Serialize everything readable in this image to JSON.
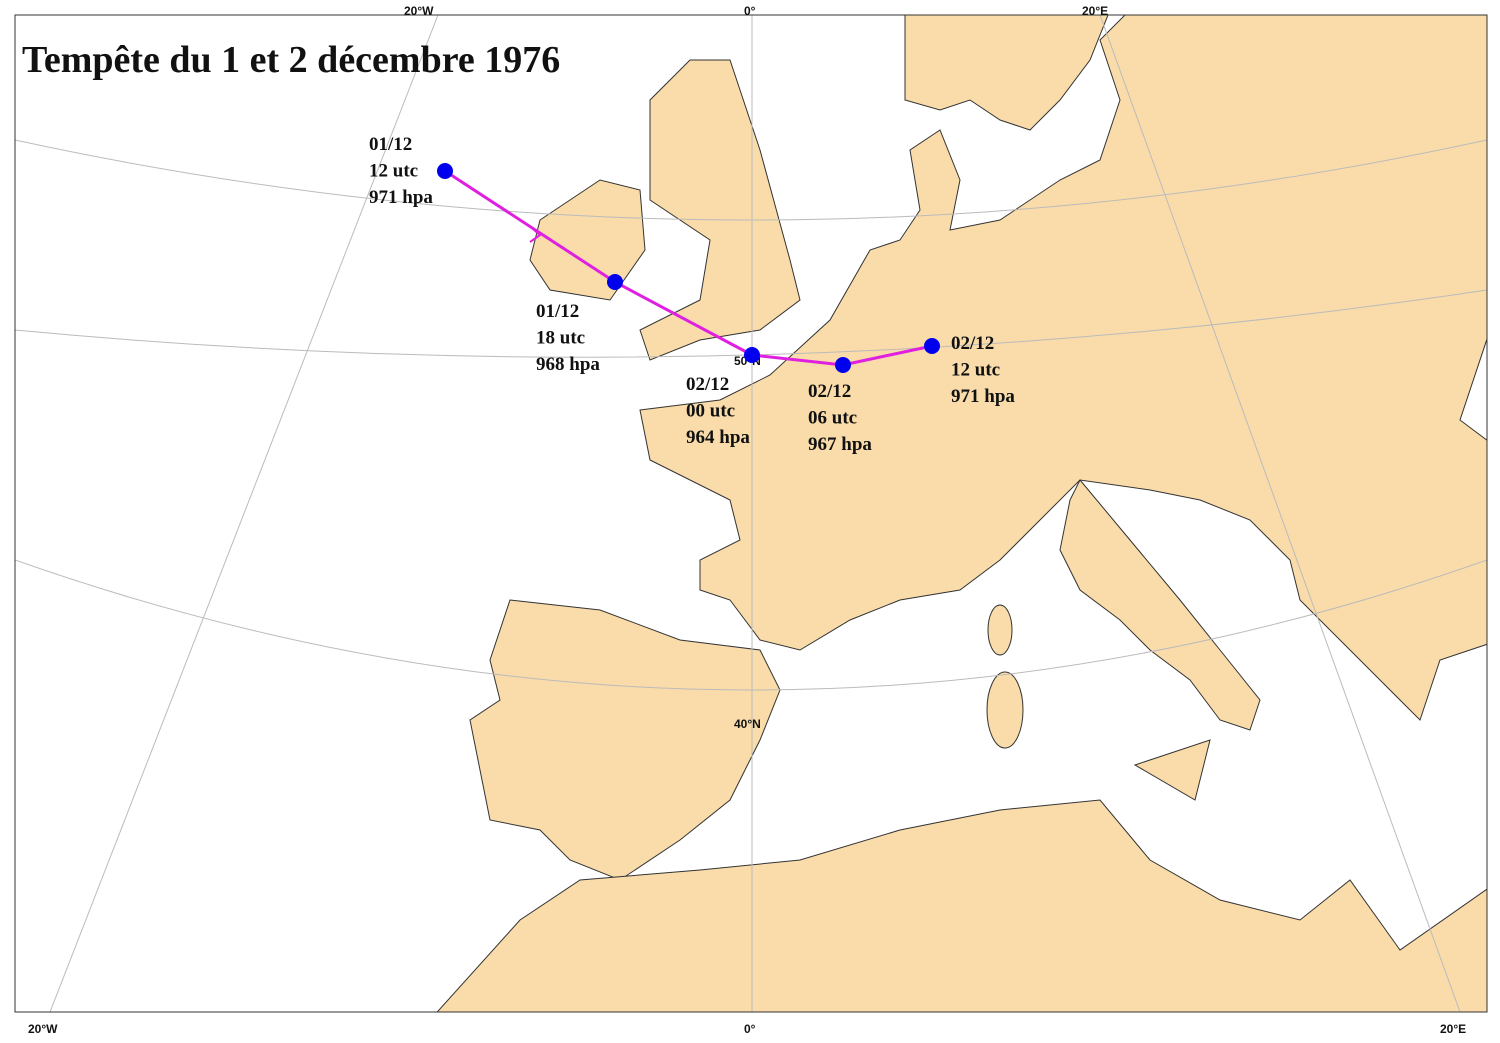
{
  "title": "Tempête du 1 et 2 décembre 1976",
  "graticule_labels": {
    "top": [
      "20°W",
      "0°",
      "20°E"
    ],
    "bottom": [
      "20°W",
      "0°",
      "20°E"
    ],
    "parallels": [
      "50°N",
      "40°N"
    ]
  },
  "track": [
    {
      "date": "01/12",
      "time": "12 utc",
      "pressure": "971 hpa"
    },
    {
      "date": "01/12",
      "time": "18 utc",
      "pressure": "968 hpa"
    },
    {
      "date": "02/12",
      "time": "00 utc",
      "pressure": "964 hpa"
    },
    {
      "date": "02/12",
      "time": "06 utc",
      "pressure": "967 hpa"
    },
    {
      "date": "02/12",
      "time": "12 utc",
      "pressure": "971 hpa"
    }
  ]
}
